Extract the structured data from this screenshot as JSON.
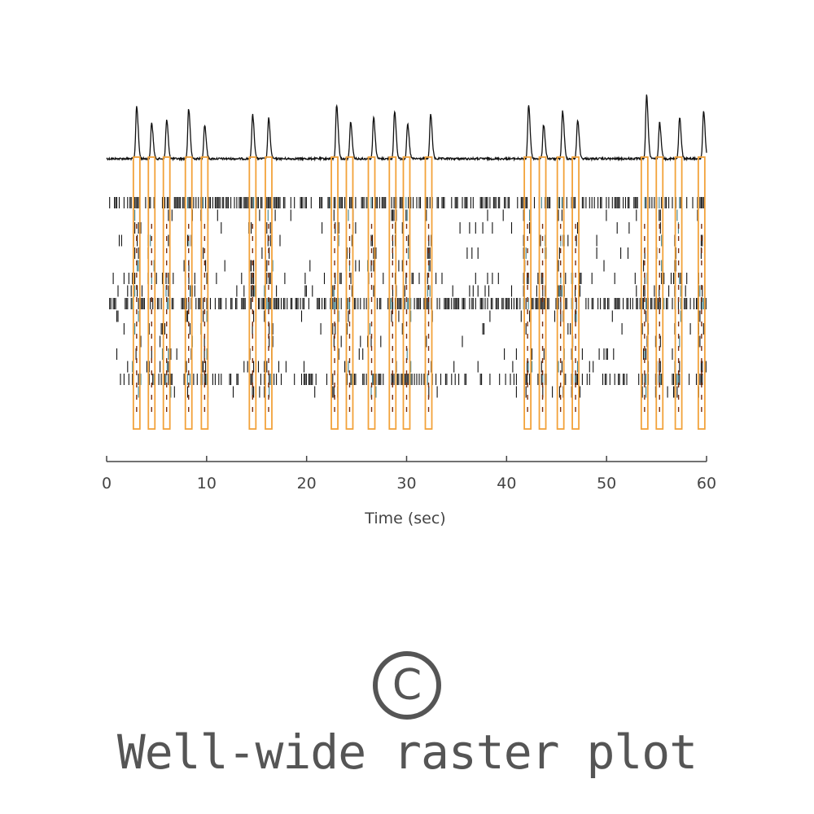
{
  "chart_data": {
    "type": "raster",
    "xlabel": "Time (sec)",
    "xlim": [
      0,
      60
    ],
    "xticks": [
      0,
      10,
      20,
      30,
      40,
      50,
      60
    ],
    "burst_times": [
      3.0,
      4.5,
      6.0,
      8.2,
      9.8,
      14.6,
      16.2,
      22.8,
      24.3,
      26.5,
      28.6,
      30.0,
      32.2,
      42.1,
      43.6,
      45.4,
      46.9,
      53.8,
      55.3,
      57.2,
      59.5
    ],
    "trace_peaks": [
      {
        "t": 3.0,
        "amp": 0.98
      },
      {
        "t": 4.5,
        "amp": 0.66
      },
      {
        "t": 6.0,
        "amp": 0.72
      },
      {
        "t": 8.2,
        "amp": 0.92
      },
      {
        "t": 9.8,
        "amp": 0.63
      },
      {
        "t": 14.6,
        "amp": 0.82
      },
      {
        "t": 16.2,
        "amp": 0.75
      },
      {
        "t": 23.0,
        "amp": 1.0
      },
      {
        "t": 24.4,
        "amp": 0.68
      },
      {
        "t": 26.7,
        "amp": 0.77
      },
      {
        "t": 28.8,
        "amp": 0.88
      },
      {
        "t": 30.1,
        "amp": 0.64
      },
      {
        "t": 32.4,
        "amp": 0.83
      },
      {
        "t": 42.2,
        "amp": 1.0
      },
      {
        "t": 43.7,
        "amp": 0.63
      },
      {
        "t": 45.6,
        "amp": 0.89
      },
      {
        "t": 47.1,
        "amp": 0.72
      },
      {
        "t": 54.0,
        "amp": 1.18
      },
      {
        "t": 55.3,
        "amp": 0.67
      },
      {
        "t": 57.3,
        "amp": 0.77
      },
      {
        "t": 59.7,
        "amp": 0.89
      }
    ],
    "channel_count": 16,
    "spike_colors": {
      "regular": "#111111",
      "in_burst": "#3d7f8c",
      "burst_box": "#f2a23a",
      "burst_core": "#7a2e0e",
      "trace": "#111111"
    }
  },
  "caption": {
    "panel_letter": "C",
    "text": "Well-wide raster plot"
  }
}
